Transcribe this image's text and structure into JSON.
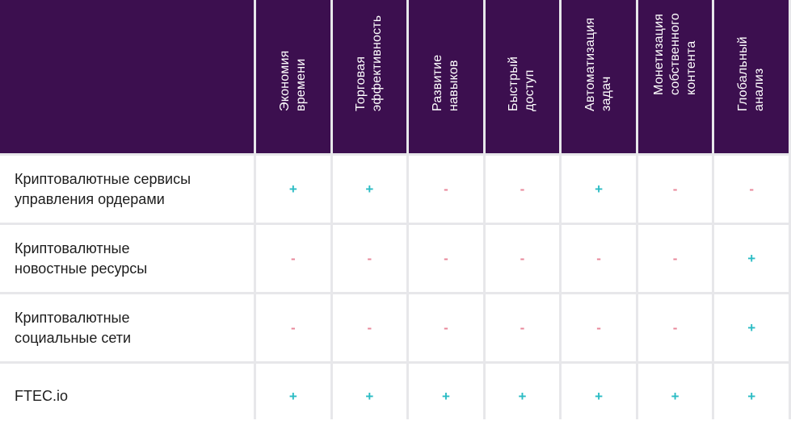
{
  "colors": {
    "header_bg": "#3c0f4f",
    "plus": "#2bbcc4",
    "minus": "#e8879a",
    "grid": "#e7e7ea"
  },
  "columns": [
    "Экономия\nвремени",
    "Торговая\nэффективность",
    "Развитие\nнавыков",
    "Быстрый\nдоступ",
    "Автоматизация\nзадач",
    "Монетизация\nсобственного\nконтента",
    "Глобальный\nанализ"
  ],
  "rows": [
    {
      "label": "Криптовалютные сервисы\nуправления ордерами",
      "marks": [
        "+",
        "+",
        "-",
        "-",
        "+",
        "-",
        "-"
      ]
    },
    {
      "label": "Криптовалютные\nновостные ресурсы",
      "marks": [
        "-",
        "-",
        "-",
        "-",
        "-",
        "-",
        "+"
      ]
    },
    {
      "label": "Криптовалютные\nсоциальные сети",
      "marks": [
        "-",
        "-",
        "-",
        "-",
        "-",
        "-",
        "+"
      ]
    },
    {
      "label": "FTEC.io",
      "marks": [
        "+",
        "+",
        "+",
        "+",
        "+",
        "+",
        "+"
      ]
    }
  ]
}
